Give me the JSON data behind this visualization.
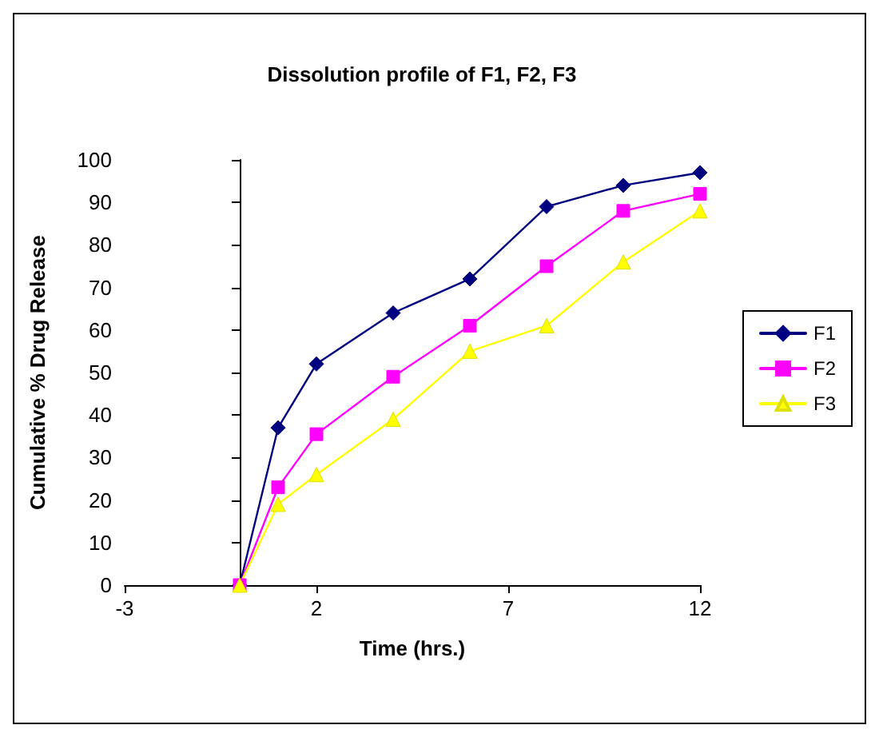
{
  "chart_data": {
    "type": "line",
    "title": "Dissolution profile of F1, F2, F3",
    "xlabel": "Time (hrs.)",
    "ylabel": "Cumulative % Drug Release",
    "x": [
      0,
      1,
      2,
      4,
      6,
      8,
      10,
      12
    ],
    "series": [
      {
        "name": "F1",
        "color": "#000080",
        "marker": "diamond",
        "values": [
          0,
          37,
          52,
          64,
          72,
          89,
          94,
          97
        ]
      },
      {
        "name": "F2",
        "color": "#ff00ff",
        "marker": "square",
        "values": [
          0,
          23,
          35.5,
          49,
          61,
          75,
          88,
          92
        ]
      },
      {
        "name": "F3",
        "color": "#ffff00",
        "marker": "triangle",
        "values": [
          0,
          19,
          26,
          39,
          55,
          61,
          76,
          88
        ]
      }
    ],
    "xlim": [
      -3,
      12
    ],
    "xticks": [
      -3,
      2,
      7,
      12
    ],
    "ylim": [
      0,
      100
    ],
    "yticks": [
      0,
      10,
      20,
      30,
      40,
      50,
      60,
      70,
      80,
      90,
      100
    ],
    "grid": false,
    "legend": "right",
    "line_style": "solid"
  }
}
